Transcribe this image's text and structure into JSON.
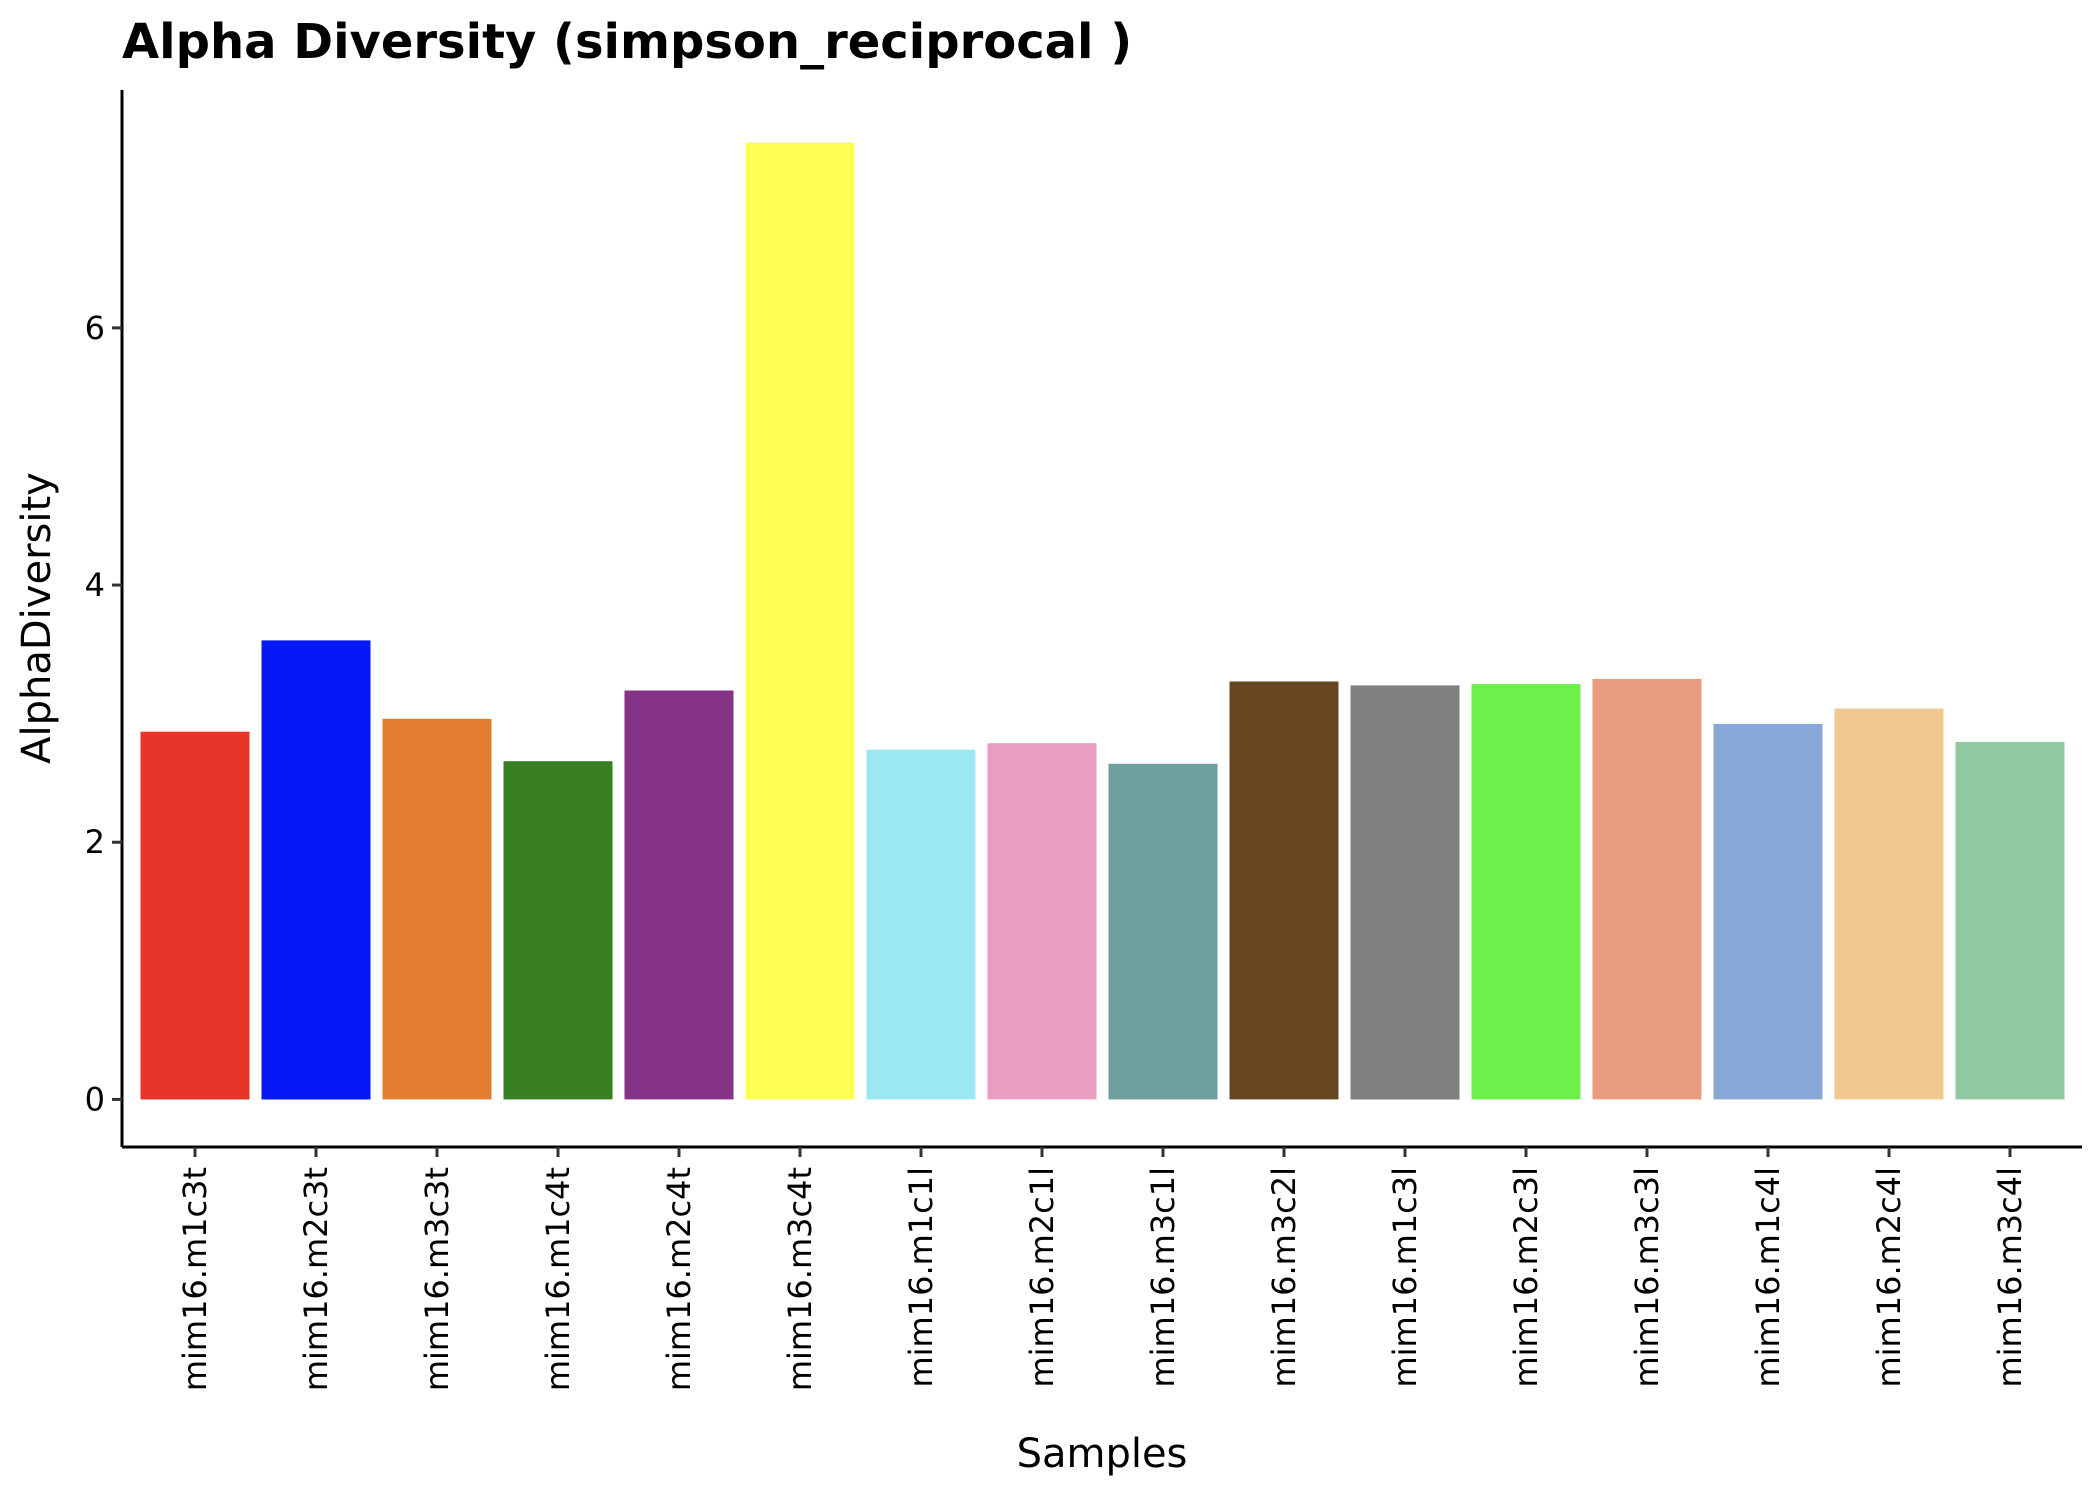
{
  "chart_data": {
    "type": "bar",
    "title": "Alpha Diversity (simpson_reciprocal )",
    "xlabel": "Samples",
    "ylabel": "AlphaDiversity",
    "ylim": [
      -0.37,
      7.85
    ],
    "yticks": [
      0,
      2,
      4,
      6
    ],
    "grid": false,
    "legend": "none",
    "categories": [
      "mim16.m1c3t",
      "mim16.m2c3t",
      "mim16.m3c3t",
      "mim16.m1c4t",
      "mim16.m2c4t",
      "mim16.m3c4t",
      "mim16.m1c1l",
      "mim16.m2c1l",
      "mim16.m3c1l",
      "mim16.m3c2l",
      "mim16.m1c3l",
      "mim16.m2c3l",
      "mim16.m3c3l",
      "mim16.m1c4l",
      "mim16.m2c4l",
      "mim16.m3c4l"
    ],
    "values": [
      2.86,
      3.57,
      2.96,
      2.63,
      3.18,
      7.44,
      2.72,
      2.77,
      2.61,
      3.25,
      3.22,
      3.23,
      3.27,
      2.92,
      3.04,
      2.78
    ],
    "colors": [
      "#e8352a",
      "#0418f5",
      "#e27c31",
      "#387e23",
      "#843387",
      "#fffe54",
      "#9ce8f0",
      "#e79ec0",
      "#6e9e9e",
      "#664620",
      "#808080",
      "#6ef04a",
      "#e99b80",
      "#87a8d6",
      "#f1c891",
      "#92c8a0"
    ]
  }
}
